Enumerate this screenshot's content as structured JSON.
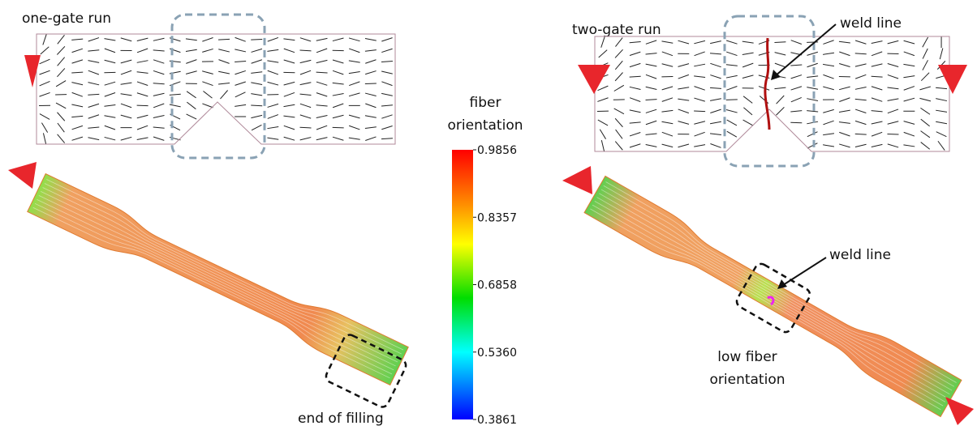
{
  "left_panel": {
    "label": "one-gate run",
    "annotation": "end of filling"
  },
  "colorbar": {
    "title_lines": [
      "fiber",
      "orientation"
    ],
    "ticks": [
      "0.9856",
      "0.8357",
      "0.6858",
      "0.5360",
      "0.3861"
    ]
  },
  "right_panel": {
    "label": "two-gate run",
    "weld_line_top": "weld line",
    "weld_line_bottom": "weld line",
    "low_fiber_lines": [
      "low fiber",
      "orientation"
    ]
  }
}
